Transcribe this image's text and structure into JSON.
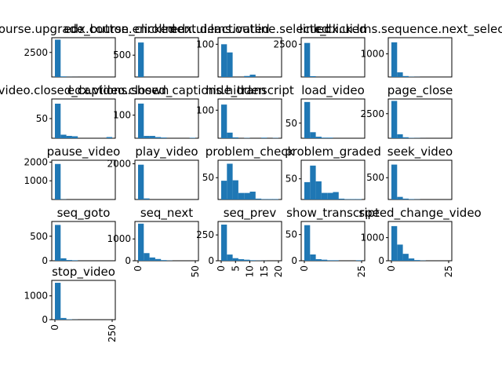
{
  "figure": {
    "background": "#ffffff",
    "bar_color": "#1f77b4"
  },
  "chart_data": [
    {
      "type": "bar",
      "title": "course.upgrade_button_clicked",
      "yticks": [
        "2500"
      ],
      "ylim": [
        0,
        4000
      ],
      "values": [
        3800,
        60,
        10,
        5,
        0,
        0,
        0,
        0,
        0,
        0
      ],
      "xticks": []
    },
    {
      "type": "bar",
      "title": "edx.course.enrollment.deactivated",
      "yticks": [
        "500"
      ],
      "ylim": [
        0,
        900
      ],
      "values": [
        790,
        0,
        0,
        0,
        0,
        0,
        0,
        0,
        0,
        0
      ],
      "xticks": []
    },
    {
      "type": "bar",
      "title": "edx.ui.lms.outline.selected",
      "yticks": [
        "100"
      ],
      "ylim": [
        0,
        120
      ],
      "values": [
        100,
        75,
        0,
        0,
        3,
        7,
        0,
        0,
        0,
        0
      ],
      "xticks": []
    },
    {
      "type": "bar",
      "title": "link_clicked",
      "yticks": [
        "2500"
      ],
      "ylim": [
        0,
        3000
      ],
      "values": [
        2600,
        60,
        0,
        0,
        0,
        0,
        0,
        0,
        0,
        0
      ],
      "xticks": []
    },
    {
      "type": "bar",
      "title": "edx.ui.lms.sequence.next_selected",
      "yticks": [
        "1000"
      ],
      "ylim": [
        0,
        1700
      ],
      "values": [
        1500,
        200,
        40,
        10,
        5,
        0,
        0,
        0,
        0,
        0
      ],
      "xticks": []
    },
    {
      "type": "bar",
      "title": "video.closed_captions.shown",
      "yticks": [
        "50"
      ],
      "ylim": [
        0,
        100
      ],
      "values": [
        88,
        9,
        6,
        5,
        0,
        0,
        0,
        0,
        0,
        3
      ],
      "xticks": []
    },
    {
      "type": "bar",
      "title": "edx.video.closed_captions.hidden",
      "yticks": [
        "100"
      ],
      "ylim": [
        0,
        170
      ],
      "values": [
        150,
        10,
        10,
        5,
        3,
        0,
        0,
        0,
        0,
        2
      ],
      "xticks": []
    },
    {
      "type": "bar",
      "title": "hide_transcript",
      "yticks": [
        "100"
      ],
      "ylim": [
        0,
        140
      ],
      "values": [
        120,
        20,
        3,
        0,
        1,
        0,
        0,
        2,
        0,
        1
      ],
      "xticks": []
    },
    {
      "type": "bar",
      "title": "load_video",
      "yticks": [
        "50"
      ],
      "ylim": [
        0,
        130
      ],
      "values": [
        120,
        20,
        5,
        2,
        2,
        0,
        0,
        0,
        0,
        0
      ],
      "xticks": []
    },
    {
      "type": "bar",
      "title": "page_close",
      "yticks": [
        "2500"
      ],
      "ylim": [
        0,
        4000
      ],
      "values": [
        3800,
        400,
        100,
        30,
        20,
        5,
        0,
        0,
        0,
        0
      ],
      "xticks": []
    },
    {
      "type": "bar",
      "title": "pause_video",
      "yticks": [
        "1000",
        "2000"
      ],
      "ylim": [
        0,
        2100
      ],
      "values": [
        1900,
        10,
        0,
        0,
        0,
        0,
        0,
        0,
        0,
        0
      ],
      "xticks": []
    },
    {
      "type": "bar",
      "title": "play_video",
      "yticks": [
        "2000"
      ],
      "ylim": [
        0,
        2200
      ],
      "values": [
        1950,
        60,
        0,
        0,
        0,
        0,
        0,
        0,
        0,
        0
      ],
      "xticks": []
    },
    {
      "type": "bar",
      "title": "problem_check",
      "yticks": [
        "50"
      ],
      "ylim": [
        0,
        90
      ],
      "values": [
        43,
        82,
        44,
        15,
        15,
        18,
        2,
        1,
        1,
        1
      ],
      "xticks": []
    },
    {
      "type": "bar",
      "title": "problem_graded",
      "yticks": [
        "50"
      ],
      "ylim": [
        0,
        95
      ],
      "values": [
        42,
        82,
        44,
        16,
        16,
        18,
        2,
        1,
        1,
        1
      ],
      "xticks": []
    },
    {
      "type": "bar",
      "title": "seek_video",
      "yticks": [
        "500"
      ],
      "ylim": [
        0,
        900
      ],
      "values": [
        800,
        60,
        20,
        10,
        5,
        0,
        0,
        0,
        0,
        0
      ],
      "xticks": []
    },
    {
      "type": "bar",
      "title": "seq_goto",
      "yticks": [
        "0",
        "500"
      ],
      "ylim": [
        0,
        800
      ],
      "values": [
        730,
        50,
        15,
        10,
        0,
        0,
        0,
        0,
        0,
        0
      ],
      "xticks": []
    },
    {
      "type": "bar",
      "title": "seq_next",
      "yticks": [
        "0",
        "1000"
      ],
      "ylim": [
        0,
        1800
      ],
      "values": [
        1700,
        350,
        150,
        80,
        30,
        10,
        0,
        0,
        0,
        0
      ],
      "xticks": [
        "0",
        "50"
      ]
    },
    {
      "type": "bar",
      "title": "seq_prev",
      "yticks": [
        "0",
        "250"
      ],
      "ylim": [
        0,
        380
      ],
      "values": [
        350,
        60,
        25,
        15,
        10,
        5,
        2,
        1,
        0,
        0
      ],
      "xticks": [
        "0",
        "5",
        "10",
        "15",
        "20"
      ]
    },
    {
      "type": "bar",
      "title": "show_transcript",
      "yticks": [
        "0",
        "50"
      ],
      "ylim": [
        0,
        75
      ],
      "values": [
        68,
        12,
        3,
        2,
        1,
        1,
        0,
        0,
        0,
        1
      ],
      "xticks": [
        "0",
        "25"
      ]
    },
    {
      "type": "bar",
      "title": "speed_change_video",
      "yticks": [
        "0",
        "1000"
      ],
      "ylim": [
        0,
        1700
      ],
      "values": [
        1500,
        700,
        300,
        100,
        30,
        10,
        0,
        0,
        0,
        0
      ],
      "xticks": [
        "0",
        "25"
      ]
    },
    {
      "type": "bar",
      "title": "stop_video",
      "yticks": [
        "0",
        "1000"
      ],
      "ylim": [
        0,
        1650
      ],
      "values": [
        1550,
        70,
        15,
        5,
        0,
        0,
        0,
        0,
        0,
        0
      ],
      "xticks": [
        "0",
        "250"
      ]
    }
  ]
}
